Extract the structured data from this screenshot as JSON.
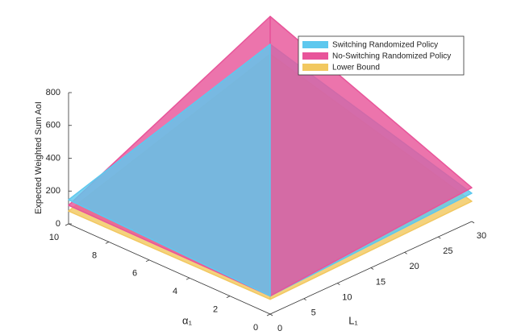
{
  "chart_data": {
    "type": "surface",
    "zlabel": "Expected Weighted Sum AoI",
    "xlabel": "L₁",
    "ylabel": "α₁",
    "x": [
      0,
      30
    ],
    "y": [
      0,
      10
    ],
    "xlim": [
      0,
      30
    ],
    "xticks": [
      0,
      5,
      10,
      15,
      20,
      25,
      30
    ],
    "ylim": [
      0,
      10
    ],
    "yticks": [
      0,
      2,
      4,
      6,
      8,
      10
    ],
    "zlim": [
      0,
      800
    ],
    "zticks": [
      0,
      200,
      400,
      600,
      800
    ],
    "legend": "top-right",
    "series": [
      {
        "name": "Switching Randomized Policy",
        "color": "#5ec8ee",
        "z": [
          [
            110,
            172
          ],
          [
            147,
            530
          ]
        ]
      },
      {
        "name": "No-Switching Randomized Policy",
        "color": "#e8559a",
        "z": [
          [
            110,
            206
          ],
          [
            113,
            700
          ]
        ]
      },
      {
        "name": "Lower Bound",
        "color": "#f2c860",
        "z": [
          [
            90,
            123
          ],
          [
            78,
            470
          ]
        ]
      }
    ]
  }
}
